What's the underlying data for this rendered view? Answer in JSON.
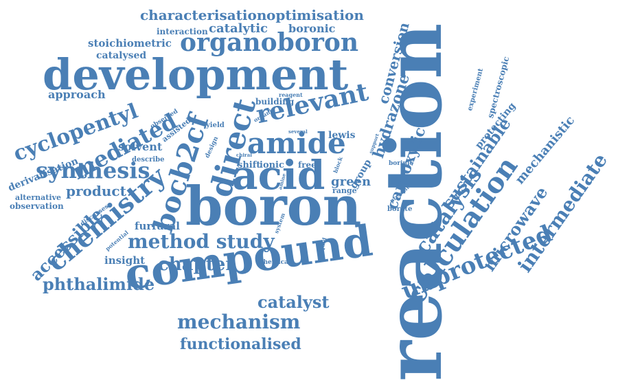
{
  "color": "#4a7fb5",
  "words": [
    {
      "text": "reaction",
      "weight": 1.0
    },
    {
      "text": "boron",
      "weight": 0.82
    },
    {
      "text": "compound",
      "weight": 0.74
    },
    {
      "text": "development",
      "weight": 0.7
    },
    {
      "text": "acid",
      "weight": 0.62
    },
    {
      "text": "direct",
      "weight": 0.5
    },
    {
      "text": "amide",
      "weight": 0.48
    },
    {
      "text": "organoboron",
      "weight": 0.4
    },
    {
      "text": "calculation",
      "weight": 0.46
    },
    {
      "text": "unprotected",
      "weight": 0.44
    },
    {
      "text": "chemistry",
      "weight": 0.42
    },
    {
      "text": "bocb2cf",
      "weight": 0.44
    },
    {
      "text": "relevant",
      "weight": 0.38
    },
    {
      "text": "cyclopentyl",
      "weight": 0.36
    },
    {
      "text": "mediated",
      "weight": 0.36
    },
    {
      "text": "synthesis",
      "weight": 0.38
    },
    {
      "text": "method study",
      "weight": 0.34
    },
    {
      "text": "mechanism",
      "weight": 0.34
    },
    {
      "text": "chapter",
      "weight": 0.32
    },
    {
      "text": "phthalimide",
      "weight": 0.3
    },
    {
      "text": "catalyst",
      "weight": 0.3
    },
    {
      "text": "functionalised",
      "weight": 0.28
    },
    {
      "text": "intermediate",
      "weight": 0.32
    },
    {
      "text": "catalysis",
      "weight": 0.34
    },
    {
      "text": "microwave",
      "weight": 0.28
    },
    {
      "text": "sustainable",
      "weight": 0.28
    },
    {
      "text": "carboxylic",
      "weight": 0.28
    },
    {
      "text": "hydrazone",
      "weight": 0.26
    },
    {
      "text": "conversion",
      "weight": 0.24
    },
    {
      "text": "accessible",
      "weight": 0.28
    },
    {
      "text": "product",
      "weight": 0.22
    },
    {
      "text": "characterisation",
      "weight": 0.2
    },
    {
      "text": "optimisation",
      "weight": 0.2
    },
    {
      "text": "catalytic",
      "weight": 0.18
    },
    {
      "text": "boronic",
      "weight": 0.17
    },
    {
      "text": "stoichiometric",
      "weight": 0.16
    },
    {
      "text": "interaction",
      "weight": 0.13
    },
    {
      "text": "catalysed",
      "weight": 0.15
    },
    {
      "text": "approach",
      "weight": 0.16
    },
    {
      "text": "solvent",
      "weight": 0.18
    },
    {
      "text": "green",
      "weight": 0.18
    },
    {
      "text": "furfural",
      "weight": 0.16
    },
    {
      "text": "insight",
      "weight": 0.16
    },
    {
      "text": "mechanistic",
      "weight": 0.18
    },
    {
      "text": "protecting",
      "weight": 0.15
    },
    {
      "text": "spectroscopic",
      "weight": 0.13
    },
    {
      "text": "experiment",
      "weight": 0.12
    },
    {
      "text": "derivatisation",
      "weight": 0.15
    },
    {
      "text": "observation",
      "weight": 0.13
    },
    {
      "text": "alternative",
      "weight": 0.12
    },
    {
      "text": "building",
      "weight": 0.13
    },
    {
      "text": "group",
      "weight": 0.15
    },
    {
      "text": "lewis",
      "weight": 0.14
    },
    {
      "text": "range",
      "weight": 0.12
    },
    {
      "text": "shift",
      "weight": 0.13
    },
    {
      "text": "ionic",
      "weight": 0.13
    },
    {
      "text": "free",
      "weight": 0.13
    },
    {
      "text": "borate",
      "weight": 0.11
    },
    {
      "text": "borinic",
      "weight": 0.1
    },
    {
      "text": "assisted",
      "weight": 0.11
    },
    {
      "text": "observed",
      "weight": 0.1
    },
    {
      "text": "describe",
      "weight": 0.1
    },
    {
      "text": "discusses",
      "weight": 0.09
    },
    {
      "text": "potential",
      "weight": 0.09
    },
    {
      "text": "chemical",
      "weight": 0.1
    },
    {
      "text": "liquid",
      "weight": 0.09
    },
    {
      "text": "system",
      "weight": 0.09
    },
    {
      "text": "amine",
      "weight": 0.08
    },
    {
      "text": "block",
      "weight": 0.09
    },
    {
      "text": "support",
      "weight": 0.08
    },
    {
      "text": "present",
      "weight": 0.09
    },
    {
      "text": "chiral",
      "weight": 0.08
    },
    {
      "text": "several",
      "weight": 0.08
    },
    {
      "text": "design",
      "weight": 0.09
    },
    {
      "text": "yield",
      "weight": 0.1
    },
    {
      "text": "organic",
      "weight": 0.09
    },
    {
      "text": "reagent",
      "weight": 0.09
    }
  ]
}
